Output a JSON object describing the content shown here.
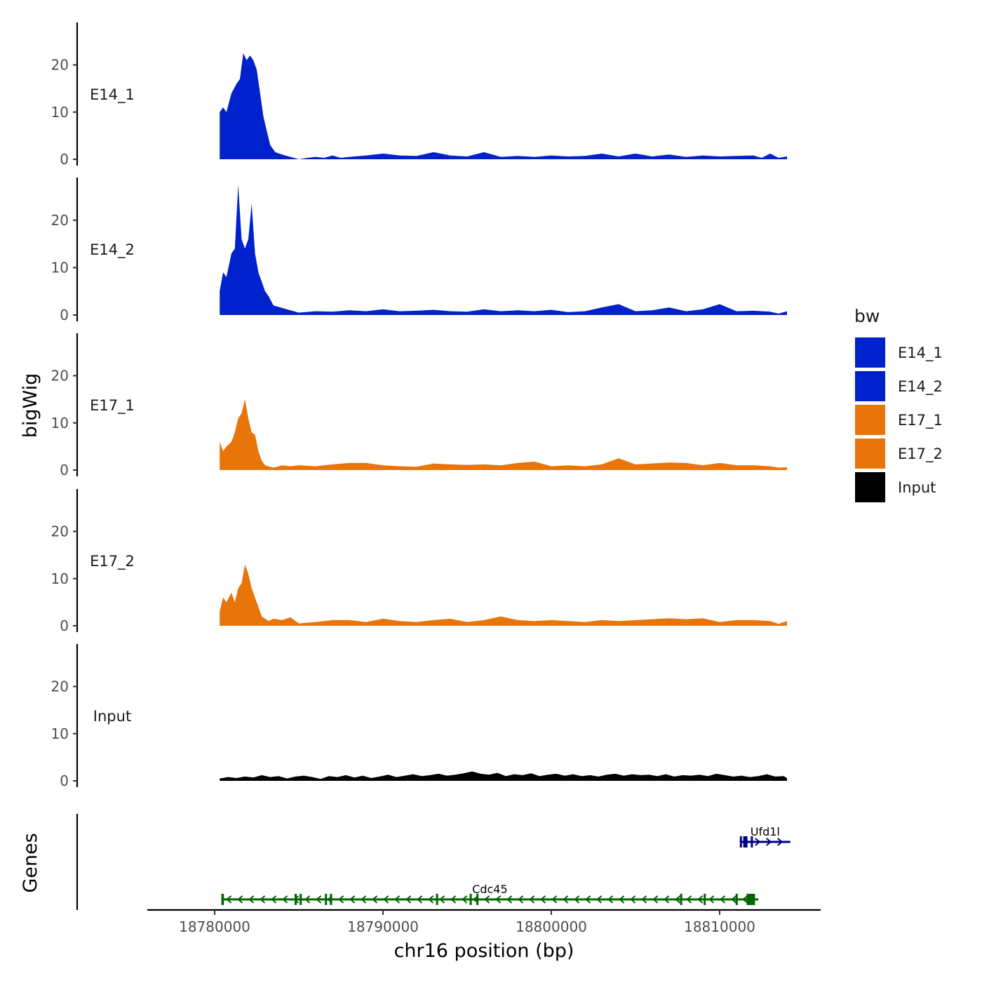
{
  "chart_data": {
    "type": "area",
    "chromosome": "chr16",
    "xlabel": "chr16 position (bp)",
    "ylabel": "bigWig",
    "genes_panel_label": "Genes",
    "xlim": [
      18776000,
      18816000
    ],
    "x_ticks": [
      {
        "value": 18780000,
        "label": "18780000"
      },
      {
        "value": 18790000,
        "label": "18790000"
      },
      {
        "value": 18800000,
        "label": "18800000"
      },
      {
        "value": 18810000,
        "label": "18810000"
      }
    ],
    "ylim": [
      0,
      29
    ],
    "y_ticks": [
      {
        "value": 0,
        "label": "0"
      },
      {
        "value": 10,
        "label": "10"
      },
      {
        "value": 20,
        "label": "20"
      }
    ],
    "legend": {
      "title": "bw",
      "entries": [
        {
          "label": "E14_1",
          "color": "#0022CC"
        },
        {
          "label": "E14_2",
          "color": "#0022CC"
        },
        {
          "label": "E17_1",
          "color": "#E87509"
        },
        {
          "label": "E17_2",
          "color": "#E87509"
        },
        {
          "label": "Input",
          "color": "#000000"
        }
      ]
    },
    "series": [
      {
        "name": "E14_1",
        "label": "E14_1",
        "color": "#0022CC",
        "x": [
          18780300,
          18780500,
          18780700,
          18781000,
          18781300,
          18781500,
          18781700,
          18781900,
          18782100,
          18782300,
          18782500,
          18782700,
          18782900,
          18783100,
          18783300,
          18783600,
          18784000,
          18784500,
          18785000,
          18785500,
          18786000,
          18786500,
          18787000,
          18787500,
          18788000,
          18789000,
          18790000,
          18791000,
          18792000,
          18793000,
          18794000,
          18795000,
          18796000,
          18797000,
          18798000,
          18799000,
          18800000,
          18801000,
          18802000,
          18803000,
          18804000,
          18805000,
          18806000,
          18807000,
          18808000,
          18809000,
          18810000,
          18811000,
          18812000,
          18812500,
          18813000,
          18813500,
          18814000
        ],
        "values": [
          10,
          11,
          10,
          14,
          16,
          17,
          22.5,
          21,
          22,
          21,
          19,
          14,
          9,
          6,
          3,
          1.5,
          1,
          0.5,
          0,
          0.3,
          0.5,
          0.3,
          0.8,
          0.3,
          0.5,
          0.8,
          1.2,
          0.8,
          0.7,
          1.5,
          0.8,
          0.6,
          1.5,
          0.5,
          0.7,
          0.5,
          0.8,
          0.6,
          0.7,
          1.2,
          0.6,
          1.2,
          0.6,
          1.0,
          0.5,
          0.8,
          0.6,
          0.7,
          0.8,
          0.3,
          1.2,
          0.3,
          0.6
        ]
      },
      {
        "name": "E14_2",
        "label": "E14_2",
        "color": "#0022CC",
        "x": [
          18780300,
          18780500,
          18780700,
          18781000,
          18781200,
          18781400,
          18781600,
          18781800,
          18782000,
          18782200,
          18782400,
          18782600,
          18782800,
          18783000,
          18783200,
          18783500,
          18784000,
          18784500,
          18785000,
          18786000,
          18787000,
          18788000,
          18789000,
          18790000,
          18791000,
          18792000,
          18793000,
          18794000,
          18795000,
          18796000,
          18797000,
          18798000,
          18799000,
          18800000,
          18801000,
          18802000,
          18803000,
          18804000,
          18805000,
          18806000,
          18807000,
          18808000,
          18809000,
          18810000,
          18811000,
          18812000,
          18813000,
          18813500,
          18814000
        ],
        "values": [
          5,
          9,
          8,
          13,
          14,
          27.5,
          16,
          14,
          16,
          23.5,
          13,
          9,
          7,
          5,
          4,
          2,
          1.5,
          1,
          0.5,
          0.8,
          0.7,
          1,
          0.8,
          1.2,
          0.8,
          0.9,
          1.1,
          0.8,
          0.7,
          1.2,
          0.8,
          1.0,
          0.8,
          1.1,
          0.6,
          0.8,
          1.6,
          2.3,
          0.8,
          1.0,
          1.6,
          0.8,
          1.2,
          2.3,
          0.8,
          0.9,
          0.7,
          0.3,
          0.8
        ]
      },
      {
        "name": "E17_1",
        "label": "E17_1",
        "color": "#E87509",
        "x": [
          18780300,
          18780500,
          18780700,
          18781000,
          18781200,
          18781400,
          18781600,
          18781800,
          18782000,
          18782200,
          18782400,
          18782600,
          18782800,
          18783000,
          18783200,
          18783500,
          18784000,
          18784500,
          18785000,
          18786000,
          18787000,
          18788000,
          18789000,
          18790000,
          18791000,
          18792000,
          18793000,
          18794000,
          18795000,
          18796000,
          18797000,
          18798000,
          18799000,
          18800000,
          18801000,
          18802000,
          18803000,
          18804000,
          18805000,
          18806000,
          18807000,
          18808000,
          18809000,
          18810000,
          18811000,
          18812000,
          18813000,
          18813500,
          18814000
        ],
        "values": [
          6,
          4,
          5,
          6,
          8,
          11,
          12,
          15,
          11,
          8,
          7.5,
          4,
          2,
          1,
          0.8,
          0.5,
          1,
          0.8,
          1,
          0.8,
          1.2,
          1.5,
          1.5,
          1.0,
          0.8,
          0.7,
          1.4,
          1.2,
          1.1,
          1.2,
          1.0,
          1.5,
          1.8,
          0.8,
          1.0,
          0.8,
          1.2,
          2.5,
          1.2,
          1.4,
          1.6,
          1.5,
          1.0,
          1.5,
          1.0,
          1.0,
          0.8,
          0.5,
          0.6
        ]
      },
      {
        "name": "E17_2",
        "label": "E17_2",
        "color": "#E87509",
        "x": [
          18780300,
          18780500,
          18780700,
          18781000,
          18781200,
          18781400,
          18781600,
          18781800,
          18782000,
          18782200,
          18782400,
          18782600,
          18782800,
          18783000,
          18783200,
          18783500,
          18784000,
          18784500,
          18785000,
          18786000,
          18787000,
          18788000,
          18789000,
          18790000,
          18791000,
          18792000,
          18793000,
          18794000,
          18795000,
          18796000,
          18797000,
          18798000,
          18799000,
          18800000,
          18801000,
          18802000,
          18803000,
          18804000,
          18805000,
          18806000,
          18807000,
          18808000,
          18809000,
          18810000,
          18811000,
          18812000,
          18813000,
          18813500,
          18814000
        ],
        "values": [
          3,
          6,
          5,
          7,
          5,
          8,
          9,
          13,
          11,
          8,
          6,
          4,
          2,
          1.5,
          1,
          1.5,
          1.2,
          1.8,
          0.5,
          0.8,
          1.2,
          1.2,
          0.8,
          1.5,
          1.0,
          0.8,
          1.2,
          1.5,
          0.8,
          1.2,
          2.0,
          1.2,
          1.0,
          1.2,
          1.0,
          0.8,
          1.2,
          1.0,
          1.2,
          1.4,
          1.6,
          1.4,
          1.6,
          0.8,
          1.2,
          1.2,
          1.0,
          0.4,
          1.0
        ]
      },
      {
        "name": "Input",
        "label": "Input",
        "color": "#000000",
        "x": [
          18780300,
          18780800,
          18781300,
          18781800,
          18782300,
          18782800,
          18783300,
          18783800,
          18784300,
          18784800,
          18785300,
          18785800,
          18786300,
          18786800,
          18787300,
          18787800,
          18788300,
          18788800,
          18789300,
          18789800,
          18790300,
          18790800,
          18791300,
          18791800,
          18792300,
          18792800,
          18793300,
          18793800,
          18794300,
          18794800,
          18795300,
          18795800,
          18796300,
          18796800,
          18797300,
          18797800,
          18798300,
          18798800,
          18799300,
          18799800,
          18800300,
          18800800,
          18801300,
          18801800,
          18802300,
          18802800,
          18803300,
          18803800,
          18804300,
          18804800,
          18805300,
          18805800,
          18806300,
          18806800,
          18807300,
          18807800,
          18808300,
          18808800,
          18809300,
          18809800,
          18810300,
          18810800,
          18811300,
          18811800,
          18812300,
          18812800,
          18813300,
          18813800,
          18814000
        ],
        "values": [
          0.5,
          0.8,
          0.6,
          0.9,
          0.7,
          1.2,
          0.8,
          1.0,
          0.5,
          0.9,
          1.1,
          0.8,
          0.4,
          1.0,
          0.8,
          1.2,
          0.7,
          1.1,
          0.6,
          0.9,
          1.3,
          0.8,
          1.1,
          1.4,
          1.0,
          1.2,
          1.5,
          1.1,
          1.3,
          1.6,
          2.0,
          1.5,
          1.3,
          1.7,
          1.0,
          1.4,
          1.2,
          1.6,
          1.0,
          1.3,
          1.5,
          1.1,
          1.4,
          1.0,
          1.2,
          0.9,
          1.3,
          1.5,
          1.1,
          1.4,
          1.2,
          1.3,
          1.0,
          1.4,
          0.9,
          1.2,
          1.1,
          1.3,
          1.0,
          1.5,
          1.2,
          0.9,
          1.1,
          0.8,
          1.0,
          1.4,
          0.9,
          1.0,
          0.6
        ]
      }
    ],
    "genes": [
      {
        "name": "Ufd1l",
        "strand": "+",
        "color": "#000080",
        "start": 18811200,
        "end": 18814200,
        "exons": [
          [
            18811200,
            18811300
          ],
          [
            18811400,
            18811650
          ],
          [
            18811850,
            18811950
          ]
        ]
      },
      {
        "name": "Cdc45",
        "strand": "-",
        "color": "#006400",
        "start": 18780400,
        "end": 18812300,
        "exons": [
          [
            18780400,
            18780550
          ],
          [
            18784750,
            18784850
          ],
          [
            18785050,
            18785150
          ],
          [
            18786550,
            18786650
          ],
          [
            18786850,
            18786950
          ],
          [
            18793150,
            18793250
          ],
          [
            18795150,
            18795250
          ],
          [
            18795550,
            18795650
          ],
          [
            18807650,
            18807750
          ],
          [
            18809050,
            18809150
          ],
          [
            18810950,
            18811050
          ],
          [
            18811600,
            18812100
          ]
        ]
      }
    ]
  }
}
